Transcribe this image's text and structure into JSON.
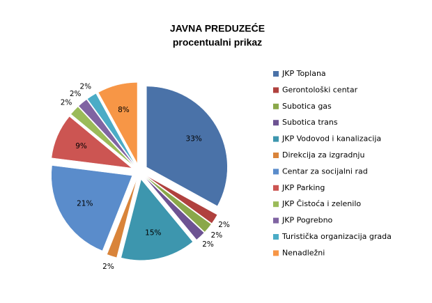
{
  "chart_data": {
    "type": "pie",
    "title": "JAVNA PREDUZEĆE",
    "subtitle": "procentualni prikaz",
    "categories": [
      "JKP Toplana",
      "Gerontološki centar",
      "Subotica gas",
      "Subotica trans",
      "JKP Vodovod i kanalizacija",
      "Direkcija za izgradnju",
      "Centar za socijalni rad",
      "JKP Parking",
      "JKP Čistoća i zelenilo",
      "JKP Pogrebno",
      "Turistička organizacija grada",
      "Nenadležni"
    ],
    "values": [
      33,
      2,
      2,
      2,
      15,
      2,
      21,
      9,
      2,
      2,
      2,
      8
    ],
    "value_labels": [
      "33%",
      "2%",
      "2%",
      "2%",
      "15%",
      "2%",
      "21%",
      "9%",
      "2%",
      "2%",
      "2%",
      "8%"
    ],
    "colors": [
      "#4a72a8",
      "#b0413e",
      "#8aa84a",
      "#6d5392",
      "#3d96ae",
      "#d9843a",
      "#5a8ccb",
      "#cc5552",
      "#9bbb59",
      "#8064a2",
      "#4bacc6",
      "#f79646"
    ],
    "legend": "right"
  }
}
